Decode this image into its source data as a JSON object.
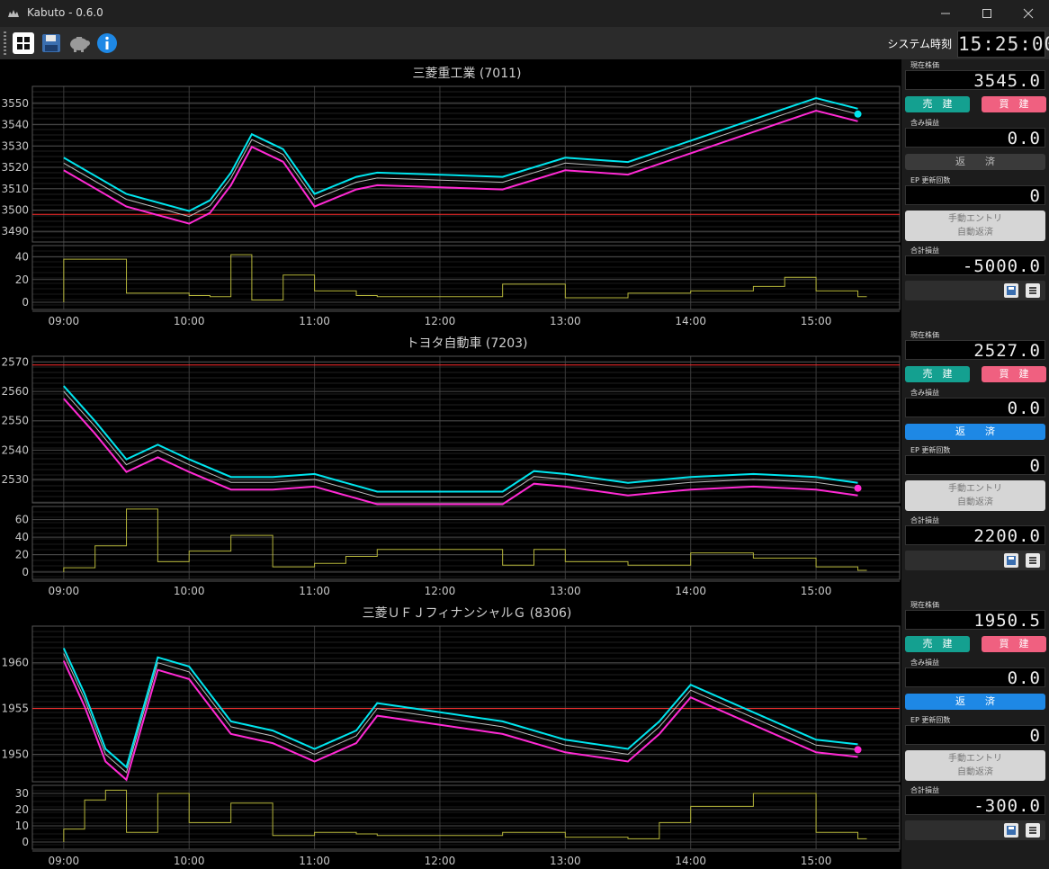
{
  "window": {
    "title": "Kabuto - 0.6.0"
  },
  "toolbar": {
    "icons": [
      "grid-icon",
      "save-icon",
      "piggy-bank-icon",
      "info-icon"
    ]
  },
  "system_time": {
    "label": "システム時刻",
    "value": "15:25:00"
  },
  "x_ticks": [
    "09:00",
    "10:00",
    "11:00",
    "12:00",
    "13:00",
    "14:00",
    "15:00"
  ],
  "colors": {
    "cyan": "#00e5ee",
    "magenta": "#ff2ad4",
    "olive": "#b5b53a",
    "red": "#ff2d2d",
    "sell": "#14a090",
    "buy": "#f06080",
    "repay": "#1e88e5"
  },
  "panels": [
    {
      "title": "三菱重工業 (7011)",
      "price_ticks": [
        "3550",
        "3540",
        "3530",
        "3520",
        "3510",
        "3500",
        "3490"
      ],
      "volume_ticks": [
        "40",
        "20",
        "0"
      ],
      "side": {
        "price_label": "現在株価",
        "price": "3545.0",
        "sell": "売　建",
        "buy": "買　建",
        "unrealized_label": "含み損益",
        "unrealized": "0.0",
        "repay": "返　　済",
        "ep_label": "EP 更新回数",
        "ep": "0",
        "manual_1": "手動エントリ",
        "manual_2": "自動返済",
        "total_label": "合計損益",
        "total": "-5000.0"
      }
    },
    {
      "title": "トヨタ自動車 (7203)",
      "price_ticks": [
        "2570",
        "2560",
        "2550",
        "2540",
        "2530"
      ],
      "volume_ticks": [
        "60",
        "40",
        "20",
        "0"
      ],
      "side": {
        "price_label": "現在株価",
        "price": "2527.0",
        "sell": "売　建",
        "buy": "買　建",
        "unrealized_label": "含み損益",
        "unrealized": "0.0",
        "repay": "返　　済",
        "ep_label": "EP 更新回数",
        "ep": "0",
        "manual_1": "手動エントリ",
        "manual_2": "自動返済",
        "total_label": "合計損益",
        "total": "2200.0"
      }
    },
    {
      "title": "三菱ＵＦＪフィナンシャルＧ (8306)",
      "price_ticks": [
        "1960",
        "1955",
        "1950"
      ],
      "volume_ticks": [
        "30",
        "20",
        "10",
        "0"
      ],
      "side": {
        "price_label": "現在株価",
        "price": "1950.5",
        "sell": "売　建",
        "buy": "買　建",
        "unrealized_label": "含み損益",
        "unrealized": "0.0",
        "repay": "返　　済",
        "ep_label": "EP 更新回数",
        "ep": "0",
        "manual_1": "手動エントリ",
        "manual_2": "自動返済",
        "total_label": "合計損益",
        "total": "-300.0"
      }
    }
  ],
  "chart_data": [
    {
      "type": "line",
      "title": "三菱重工業 (7011)",
      "x": [
        "09:00",
        "09:30",
        "10:00",
        "10:10",
        "10:20",
        "10:30",
        "10:45",
        "11:00",
        "11:20",
        "11:30",
        "12:30",
        "13:00",
        "13:30",
        "14:00",
        "14:30",
        "14:45",
        "15:00",
        "15:20"
      ],
      "series": [
        {
          "values": [
            3522,
            3505,
            3497,
            3502,
            3515,
            3533,
            3526,
            3505,
            3513,
            3515,
            3513,
            3522,
            3520,
            3530,
            3540,
            3545,
            3550,
            3545
          ]
        }
      ],
      "reference_line": 3498,
      "ylim": [
        3485,
        3558
      ],
      "volume": {
        "values": [
          38,
          8,
          6,
          5,
          42,
          2,
          24,
          10,
          6,
          5,
          16,
          4,
          8,
          10,
          14,
          22,
          10,
          5
        ],
        "ylim": [
          0,
          50
        ]
      }
    },
    {
      "type": "line",
      "title": "トヨタ自動車 (7203)",
      "x": [
        "09:00",
        "09:15",
        "09:30",
        "09:45",
        "10:00",
        "10:20",
        "10:40",
        "11:00",
        "11:15",
        "11:30",
        "12:30",
        "12:45",
        "13:00",
        "13:30",
        "14:00",
        "14:30",
        "15:00",
        "15:20"
      ],
      "series": [
        {
          "values": [
            2560,
            2548,
            2535,
            2540,
            2535,
            2529,
            2529,
            2530,
            2527,
            2524,
            2524,
            2531,
            2530,
            2527,
            2529,
            2530,
            2529,
            2527
          ]
        }
      ],
      "reference_line": 2569,
      "ylim": [
        2522,
        2572
      ],
      "volume": {
        "values": [
          5,
          30,
          72,
          12,
          24,
          42,
          6,
          10,
          18,
          26,
          8,
          26,
          12,
          8,
          22,
          16,
          6,
          2
        ],
        "ylim": [
          0,
          75
        ]
      }
    },
    {
      "type": "line",
      "title": "三菱ＵＦＪフィナンシャルＧ (8306)",
      "x": [
        "09:00",
        "09:10",
        "09:20",
        "09:30",
        "09:45",
        "10:00",
        "10:20",
        "10:40",
        "11:00",
        "11:20",
        "11:30",
        "12:30",
        "13:00",
        "13:30",
        "13:45",
        "14:00",
        "14:30",
        "15:00",
        "15:20"
      ],
      "series": [
        {
          "values": [
            1961,
            1956,
            1950,
            1948,
            1960,
            1959,
            1953,
            1952,
            1950,
            1952,
            1955,
            1953,
            1951,
            1950,
            1953,
            1957,
            1954,
            1951,
            1950.5
          ]
        }
      ],
      "reference_line": 1955,
      "ylim": [
        1947,
        1964
      ],
      "volume": {
        "values": [
          8,
          26,
          32,
          6,
          30,
          12,
          24,
          4,
          6,
          5,
          4,
          6,
          3,
          2,
          12,
          22,
          30,
          6,
          2
        ],
        "ylim": [
          0,
          35
        ]
      }
    }
  ]
}
